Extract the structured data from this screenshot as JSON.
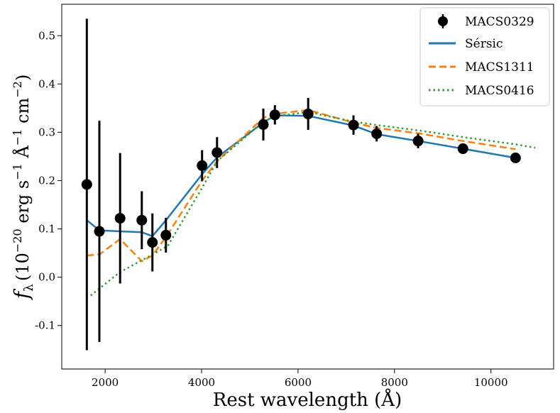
{
  "chart_data": {
    "type": "scatter",
    "xlabel": "Rest wavelength (Å)",
    "ylabel": "f_λ (10^−20 erg s^−1 Å^−1 cm^−2)",
    "ylabel_parts": {
      "symbol": "f",
      "subscript": "λ",
      "open": "(10",
      "exp1": "−20",
      "unit1": " erg s",
      "exp2": "−1",
      "unit2": " Å",
      "exp3": "−1",
      "unit3": " cm",
      "exp4": "−2",
      "close": ")"
    },
    "xlim": [
      1100,
      11300
    ],
    "ylim": [
      -0.19,
      0.565
    ],
    "x_ticks": [
      2000,
      4000,
      6000,
      8000,
      10000
    ],
    "y_ticks": [
      -0.1,
      0.0,
      0.1,
      0.2,
      0.3,
      0.4,
      0.5
    ],
    "x_tick_labels": [
      "2000",
      "4000",
      "6000",
      "8000",
      "10000"
    ],
    "y_tick_labels": [
      "-0.1",
      "0.0",
      "0.1",
      "0.2",
      "0.3",
      "0.4",
      "0.5"
    ],
    "grid": false,
    "legend_position": "top-right",
    "series": [
      {
        "name": "MACS0329",
        "style": "errorbar",
        "color": "#000000",
        "x": [
          1620,
          1880,
          2310,
          2760,
          2980,
          3260,
          4010,
          4320,
          5280,
          5520,
          6210,
          7150,
          7630,
          8490,
          9420,
          10510
        ],
        "y": [
          0.192,
          0.095,
          0.122,
          0.118,
          0.072,
          0.087,
          0.231,
          0.258,
          0.316,
          0.336,
          0.338,
          0.315,
          0.297,
          0.282,
          0.266,
          0.247
        ],
        "yerr": [
          0.343,
          0.229,
          0.135,
          0.06,
          0.06,
          0.036,
          0.032,
          0.032,
          0.033,
          0.02,
          0.033,
          0.02,
          0.016,
          0.015,
          0.011,
          0.008
        ]
      },
      {
        "name": "Sérsic",
        "style": "solid",
        "color": "#1f77b4",
        "x": [
          1620,
          1880,
          2310,
          2760,
          2980,
          3260,
          4010,
          4320,
          5280,
          5520,
          6210,
          7150,
          7630,
          8490,
          9420,
          10510
        ],
        "y": [
          0.118,
          0.097,
          0.095,
          0.093,
          0.085,
          0.118,
          0.213,
          0.248,
          0.32,
          0.335,
          0.334,
          0.314,
          0.296,
          0.282,
          0.266,
          0.247
        ]
      },
      {
        "name": "MACS1311",
        "style": "dashed",
        "color": "#ff7f0e",
        "x": [
          1620,
          1880,
          2310,
          2760,
          2980,
          3260,
          4010,
          4320,
          5280,
          5520,
          6210,
          7150,
          7630,
          8490,
          9420,
          10510
        ],
        "y": [
          0.045,
          0.047,
          0.079,
          0.033,
          0.045,
          0.083,
          0.2,
          0.24,
          0.33,
          0.338,
          0.346,
          0.32,
          0.309,
          0.298,
          0.282,
          0.265
        ]
      },
      {
        "name": "MACS0416",
        "style": "dotted",
        "color": "#2ca02c",
        "x": [
          1700,
          2300,
          2980,
          3300,
          4010,
          4320,
          5280,
          5520,
          6210,
          7150,
          7630,
          8490,
          9420,
          10510,
          10920
        ],
        "y": [
          -0.038,
          0.01,
          0.047,
          0.065,
          0.185,
          0.24,
          0.322,
          0.333,
          0.342,
          0.322,
          0.315,
          0.304,
          0.29,
          0.275,
          0.268
        ]
      }
    ]
  }
}
